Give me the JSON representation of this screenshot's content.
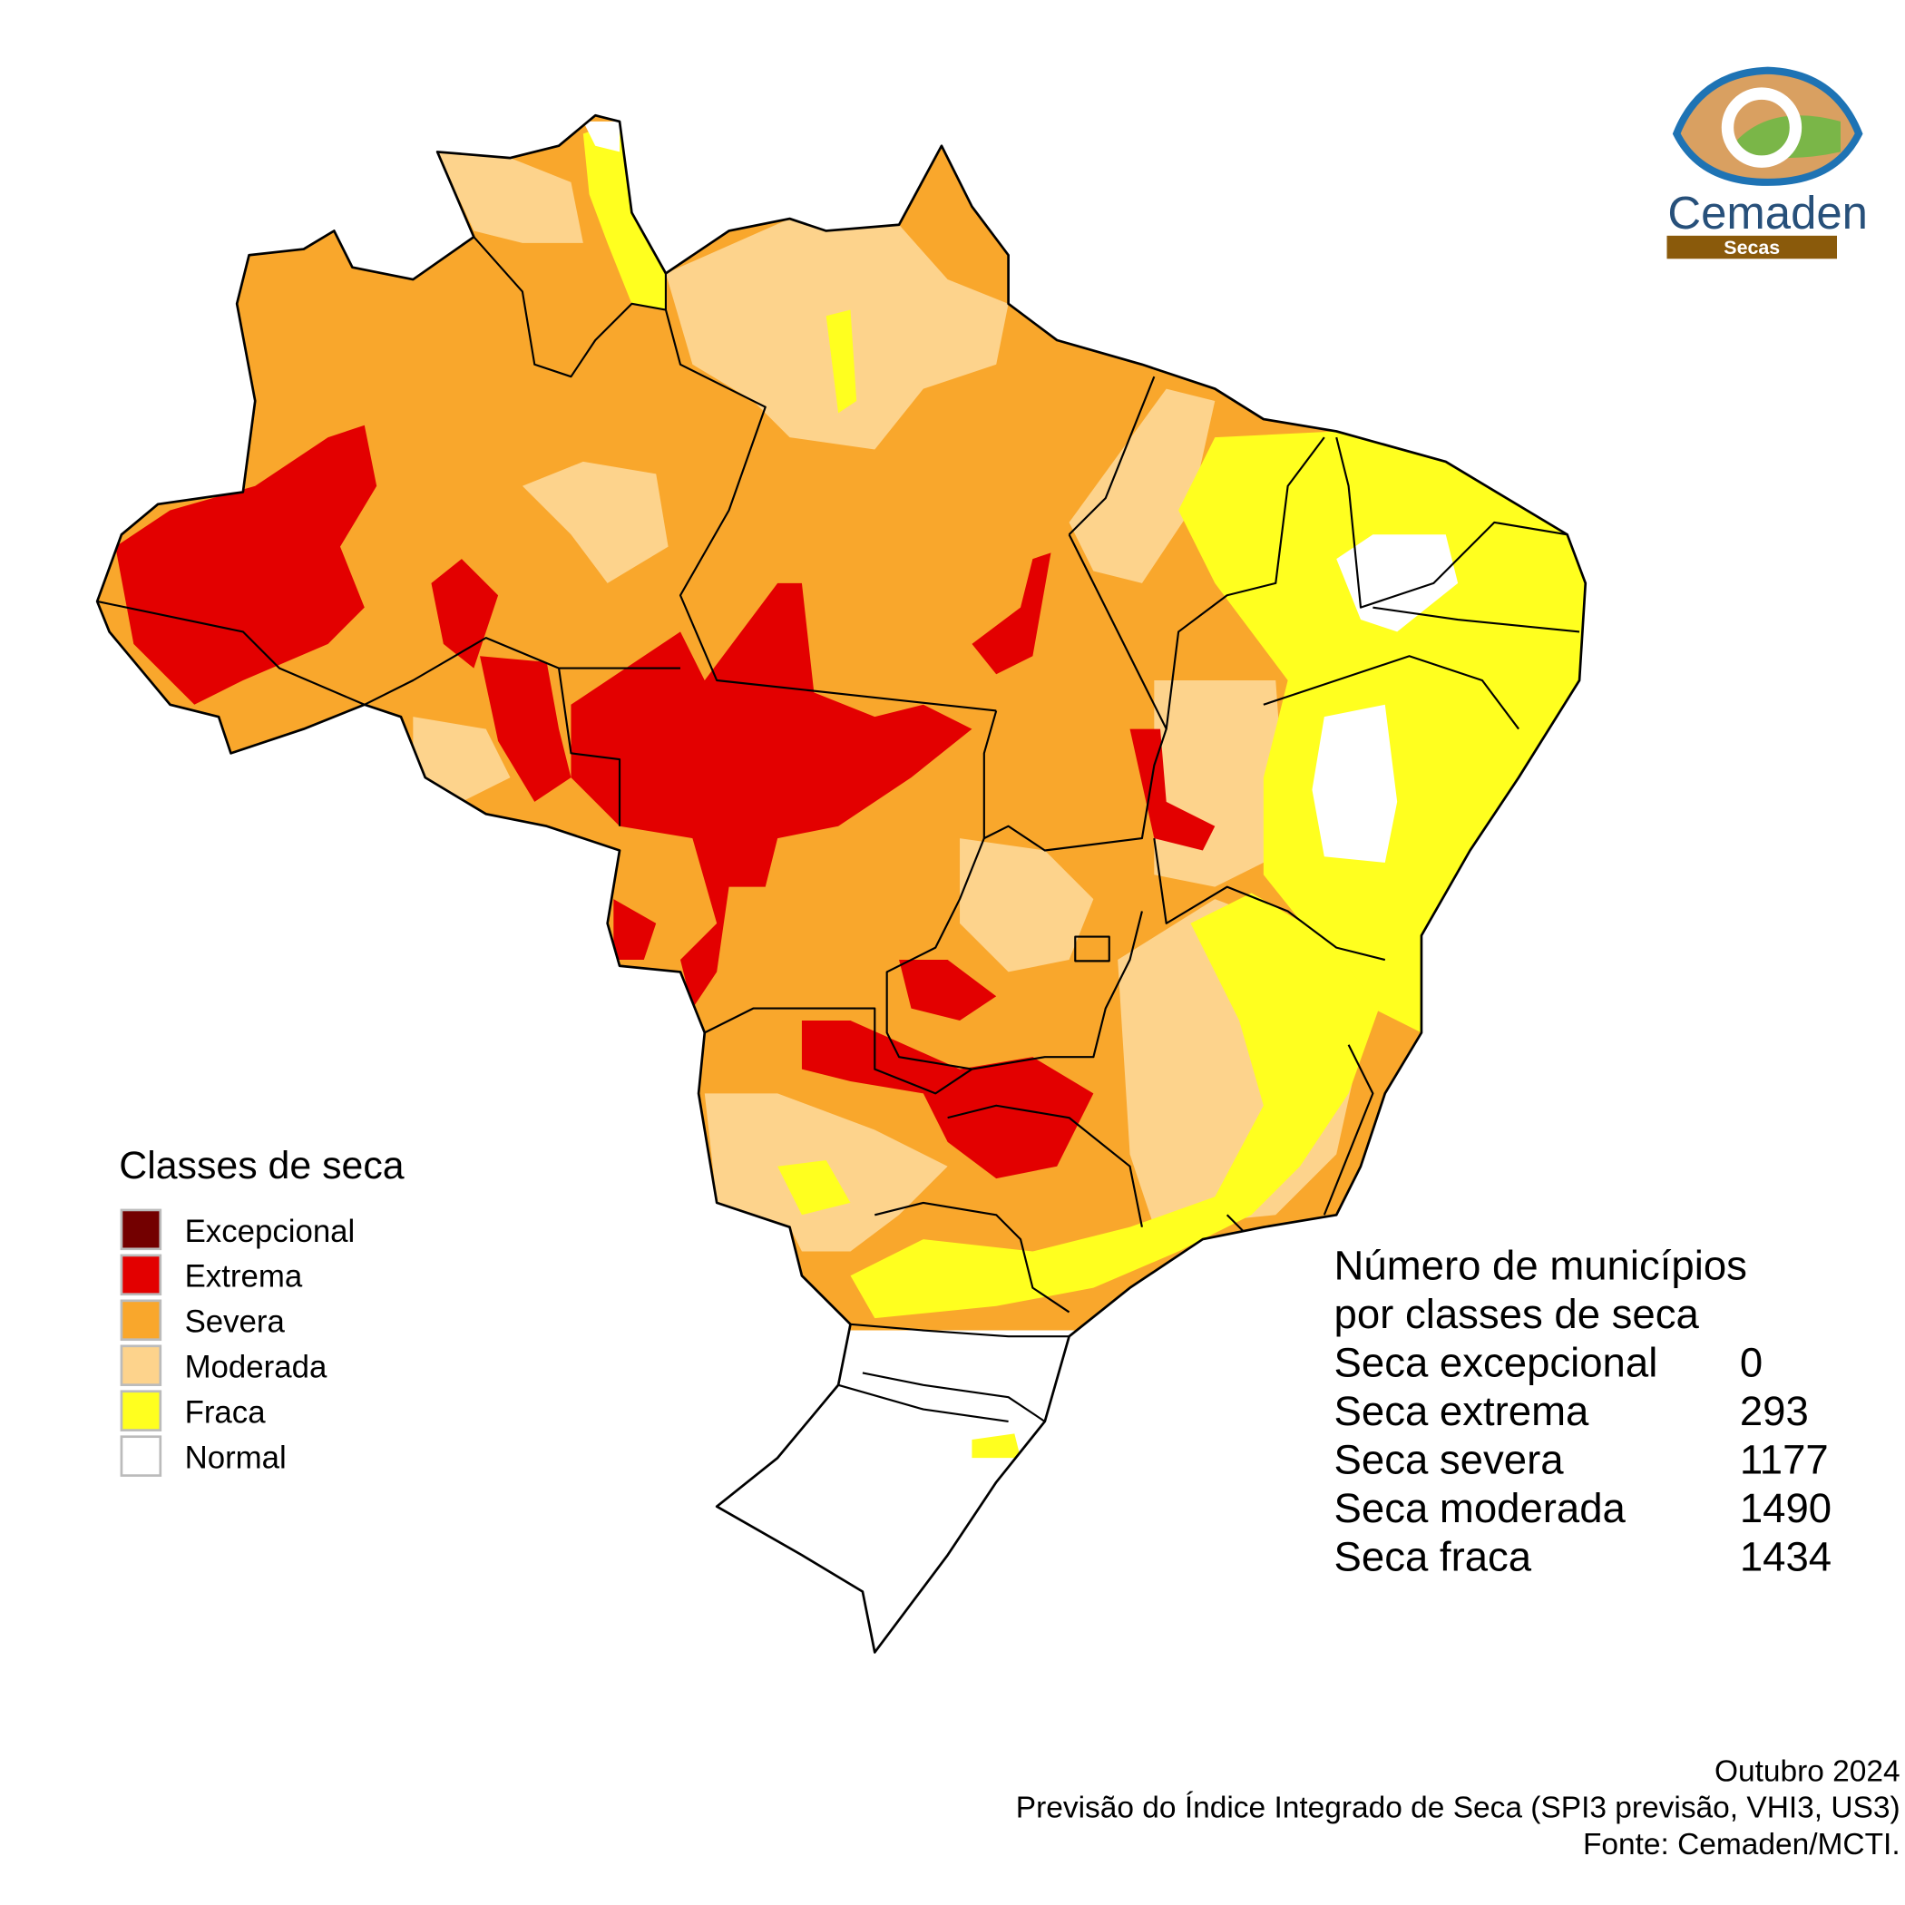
{
  "logo": {
    "name": "Cemaden",
    "tag": "Secas"
  },
  "legend": {
    "title": "Classes de seca",
    "items": [
      {
        "label": "Excepcional",
        "color": "#730000"
      },
      {
        "label": "Extrema",
        "color": "#e30000"
      },
      {
        "label": "Severa",
        "color": "#f9a72c"
      },
      {
        "label": "Moderada",
        "color": "#fdd38c"
      },
      {
        "label": "Fraca",
        "color": "#ffff1f"
      },
      {
        "label": "Normal",
        "color": "#ffffff"
      }
    ]
  },
  "stats": {
    "title": [
      "Número de municípios",
      "por classes de seca"
    ],
    "rows": [
      {
        "label": "Seca excepcional",
        "value": 0
      },
      {
        "label": "Seca extrema",
        "value": 293
      },
      {
        "label": "Seca severa",
        "value": 1177
      },
      {
        "label": "Seca moderada",
        "value": 1490
      },
      {
        "label": "Seca fraca",
        "value": 1434
      }
    ]
  },
  "footer": [
    "Outubro 2024",
    "Previsão do Índice Integrado de Seca (SPI3 previsão, VHI3, US3)",
    "Fonte: Cemaden/MCTI."
  ]
}
